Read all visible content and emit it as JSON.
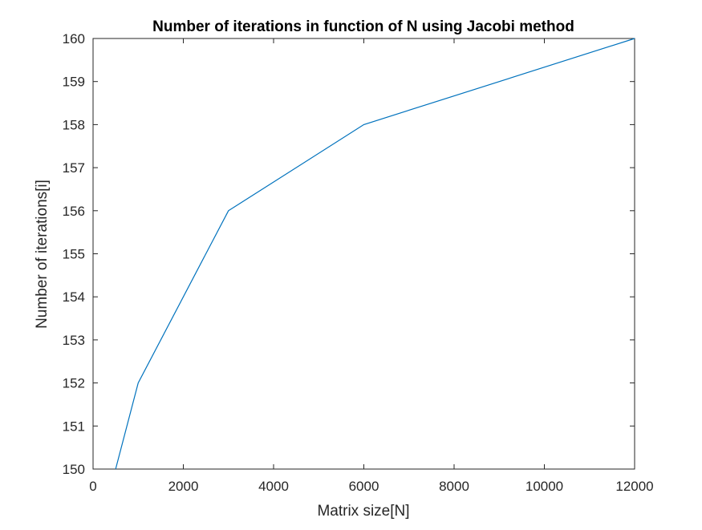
{
  "chart_data": {
    "type": "line",
    "title": "Number of iterations in function of N using Jacobi method",
    "xlabel": "Matrix size[N]",
    "ylabel": "Number of iterations[i]",
    "xlim": [
      0,
      12000
    ],
    "ylim": [
      150,
      160
    ],
    "xticks": [
      0,
      2000,
      4000,
      6000,
      8000,
      10000,
      12000
    ],
    "yticks": [
      150,
      151,
      152,
      153,
      154,
      155,
      156,
      157,
      158,
      159,
      160
    ],
    "grid": false,
    "series": [
      {
        "x": [
          500,
          1000,
          3000,
          6000,
          12000
        ],
        "y": [
          150,
          152,
          156,
          158,
          160
        ],
        "color": "#0072BD"
      }
    ]
  }
}
